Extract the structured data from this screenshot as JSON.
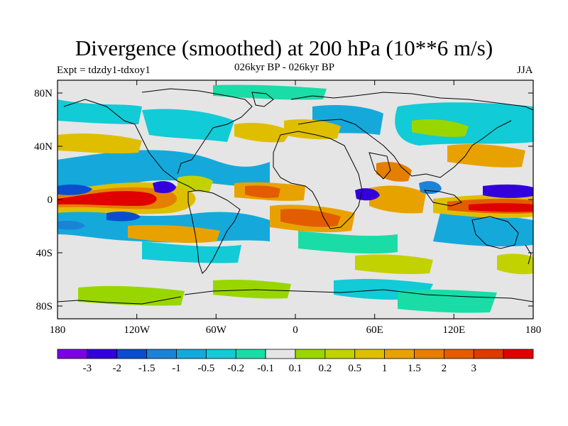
{
  "title": "Divergence (smoothed) at 200 hPa (10**6 m/s)",
  "subtitle_left": "Expt = tdzdy1-tdxoy1",
  "subtitle_center": "026kyr BP - 026kyr BP",
  "subtitle_right": "JJA",
  "lat_labels": [
    "80N",
    "40N",
    "0",
    "40S",
    "80S"
  ],
  "lon_labels": [
    "180",
    "120W",
    "60W",
    "0",
    "60E",
    "120E",
    "180"
  ],
  "colorbar": {
    "colors": [
      "#7b00e6",
      "#3300dd",
      "#0a4ecf",
      "#1b83d6",
      "#15a9db",
      "#11cbd6",
      "#19dca6",
      "#e5e5e5",
      "#99d600",
      "#c2d200",
      "#dfbe00",
      "#e8a200",
      "#e57f00",
      "#e35c00",
      "#df3a00",
      "#e00000"
    ],
    "labels": [
      "-3",
      "-2",
      "-1.5",
      "-1",
      "-0.5",
      "-0.2",
      "-0.1",
      "0.1",
      "0.2",
      "0.5",
      "1",
      "1.5",
      "2",
      "3"
    ]
  }
}
